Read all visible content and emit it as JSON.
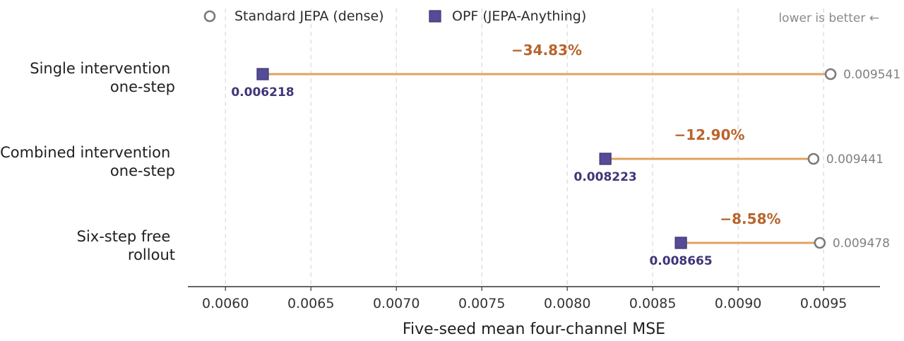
{
  "chart_data": {
    "type": "dumbbell",
    "xlabel": "Five-seed mean four-channel MSE",
    "xlim": [
      0.00578,
      0.00983
    ],
    "xticks": [
      0.006,
      0.0065,
      0.007,
      0.0075,
      0.008,
      0.0085,
      0.009,
      0.0095
    ],
    "xtick_labels": [
      "0.0060",
      "0.0065",
      "0.0070",
      "0.0075",
      "0.0080",
      "0.0085",
      "0.0090",
      "0.0095"
    ],
    "grid": "vertical dashed",
    "legend_position": "top-center",
    "hint": "lower is better ←",
    "legend": [
      {
        "name": "Standard JEPA (dense)",
        "marker": "open-circle"
      },
      {
        "name": "OPF (JEPA-Anything)",
        "marker": "filled-square"
      }
    ],
    "categories": [
      {
        "label": [
          "Single intervention",
          "one-step"
        ],
        "standard": 0.009541,
        "opf": 0.006218,
        "standard_label": "0.009541",
        "opf_label": "0.006218",
        "change": "−34.83%"
      },
      {
        "label": [
          "Combined intervention",
          "one-step"
        ],
        "standard": 0.009441,
        "opf": 0.008223,
        "standard_label": "0.009441",
        "opf_label": "0.008223",
        "change": "−12.90%"
      },
      {
        "label": [
          "Six-step free",
          "rollout"
        ],
        "standard": 0.009478,
        "opf": 0.008665,
        "standard_label": "0.009478",
        "opf_label": "0.008665",
        "change": "−8.58%"
      }
    ],
    "colors": {
      "standard": "#7a7a7a",
      "opf_fill": "#564b97",
      "opf_edge": "#3b3470",
      "opf_text": "#3e3677",
      "connector": "#e0a35e",
      "change_text": "#b8642c",
      "grid": "#d9d9d9",
      "axis": "#333333"
    }
  }
}
